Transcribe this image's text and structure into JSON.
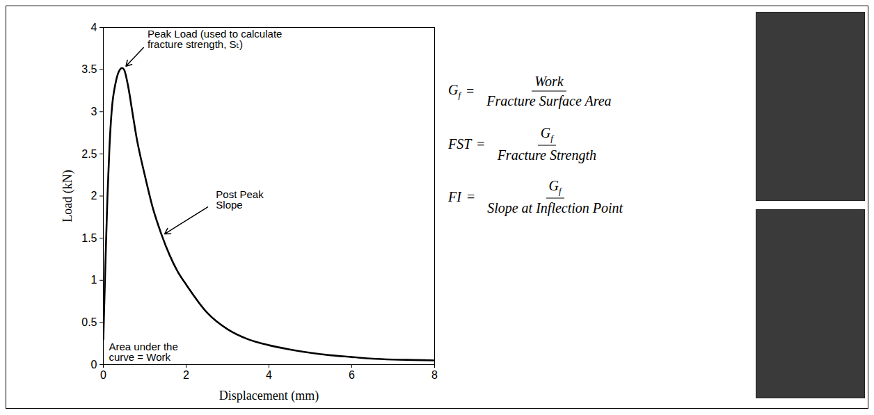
{
  "chart_data": {
    "type": "line",
    "x": [
      0,
      0.05,
      0.1,
      0.15,
      0.2,
      0.3,
      0.4,
      0.45,
      0.5,
      0.6,
      0.7,
      0.8,
      1.0,
      1.2,
      1.4,
      1.6,
      1.8,
      2.0,
      2.5,
      3.0,
      3.5,
      4.0,
      4.5,
      5.0,
      5.5,
      6.0,
      6.5,
      7.0,
      7.5,
      8.0
    ],
    "values": [
      0.3,
      1.2,
      2.0,
      2.6,
      3.0,
      3.35,
      3.5,
      3.52,
      3.5,
      3.3,
      3.0,
      2.7,
      2.25,
      1.85,
      1.55,
      1.3,
      1.1,
      0.95,
      0.62,
      0.42,
      0.3,
      0.23,
      0.18,
      0.14,
      0.11,
      0.09,
      0.07,
      0.06,
      0.055,
      0.05
    ],
    "color": "#000000",
    "xlim": [
      0,
      8
    ],
    "ylim": [
      0,
      4
    ],
    "xticks": [
      0,
      2,
      4,
      6,
      8
    ],
    "yticks": [
      0,
      0.5,
      1,
      1.5,
      2,
      2.5,
      3,
      3.5,
      4
    ],
    "x_label": "Displacement (mm)",
    "y_label": "Load (kN)",
    "grid": false,
    "annotations": {
      "peak": "Peak Load (used to calculate fracture strength, Sₜ)",
      "post_peak": "Post Peak Slope",
      "area": "Area under the curve = Work"
    }
  },
  "equations": [
    {
      "lhs": {
        "base": "G",
        "sub": "f"
      },
      "numerator": "Work",
      "denominator": "Fracture Surface Area"
    },
    {
      "lhs": "FST",
      "numerator": {
        "base": "G",
        "sub": "f"
      },
      "denominator": "Fracture Strength"
    },
    {
      "lhs": "FI",
      "numerator": {
        "base": "G",
        "sub": "f"
      },
      "denominator": "Slope at Inflection Point"
    }
  ]
}
